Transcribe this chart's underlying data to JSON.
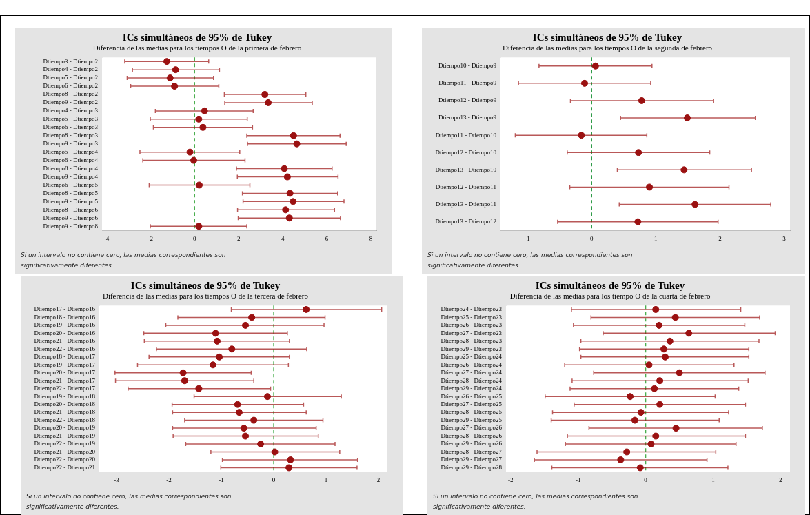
{
  "chart_data": [
    {
      "type": "scatter",
      "orientation": "horizontal",
      "title": "ICs simultáneos de 95% de Tukey",
      "subtitle": "Diferencia de las medias para los tiempos O de la primera de febrero",
      "color": "#9b1111",
      "marker": "circle",
      "grid": false,
      "categories": [
        "Dtiempo3 - Dtiempo2",
        "Dtiempo4 - Dtiempo2",
        "Dtiempo5 - Dtiempo2",
        "Dtiempo6 - Dtiempo2",
        "Dtiempo8 - Dtiempo2",
        "Dtiempo9 - Dtiempo2",
        "Dtiempo4 - Dtiempo3",
        "Dtiempo5 - Dtiempo3",
        "Dtiempo6 - Dtiempo3",
        "Dtiempo8 - Dtiempo3",
        "Dtiempo9 - Dtiempo3",
        "Dtiempo5 - Dtiempo4",
        "Dtiempo6 - Dtiempo4",
        "Dtiempo8 - Dtiempo4",
        "Dtiempo9 - Dtiempo4",
        "Dtiempo6 - Dtiempo5",
        "Dtiempo8 - Dtiempo5",
        "Dtiempo9 - Dtiempo5",
        "Dtiempo8 - Dtiempo6",
        "Dtiempo9 - Dtiempo6",
        "Dtiempo9 - Dtiempo8"
      ],
      "values": [
        -1.26,
        -0.86,
        -1.11,
        -0.91,
        3.19,
        3.34,
        0.45,
        0.19,
        0.38,
        4.49,
        4.64,
        -0.21,
        -0.04,
        4.07,
        4.21,
        0.21,
        4.33,
        4.47,
        4.13,
        4.3,
        0.19
      ],
      "errors": [
        [
          -3.17,
          0.64
        ],
        [
          -2.82,
          1.13
        ],
        [
          -3.06,
          0.86
        ],
        [
          -2.9,
          1.1
        ],
        [
          1.35,
          5.05
        ],
        [
          1.37,
          5.34
        ],
        [
          -1.78,
          2.66
        ],
        [
          -2.01,
          2.39
        ],
        [
          -1.87,
          2.63
        ],
        [
          2.37,
          6.6
        ],
        [
          2.4,
          6.88
        ],
        [
          -2.48,
          2.05
        ],
        [
          -2.35,
          2.29
        ],
        [
          1.9,
          6.24
        ],
        [
          1.94,
          6.51
        ],
        [
          -2.06,
          2.51
        ],
        [
          2.17,
          6.49
        ],
        [
          2.2,
          6.78
        ],
        [
          1.95,
          6.35
        ],
        [
          1.98,
          6.62
        ],
        [
          -2.01,
          2.37
        ]
      ],
      "xlim": [
        -4.2,
        8.25
      ],
      "xticks": [
        -4,
        -2,
        0,
        2,
        4,
        6,
        8
      ],
      "ref_lines": [
        {
          "axis": "x",
          "value": 0,
          "color": "#4caf50",
          "line_style": "dashed"
        }
      ],
      "annotations": [
        "Si un intervalo no contiene cero, las medias correspondientes son significativamente diferentes."
      ]
    },
    {
      "type": "scatter",
      "orientation": "horizontal",
      "title": "ICs simultáneos de 95% de Tukey",
      "subtitle": "Diferencia de las medias para los tiempos O de la segunda de febrero",
      "color": "#9b1111",
      "marker": "circle",
      "grid": false,
      "categories": [
        "Dtiempo10 - Dtiempo9",
        "Dtiempo11 - Dtiempo9",
        "Dtiempo12 - Dtiempo9",
        "Dtiempo13 - Dtiempo9",
        "Dtiempo11 - Dtiempo10",
        "Dtiempo12 - Dtiempo10",
        "Dtiempo13 - Dtiempo10",
        "Dtiempo12 - Dtiempo11",
        "Dtiempo13 - Dtiempo11",
        "Dtiempo13 - Dtiempo12"
      ],
      "values": [
        0.06,
        -0.11,
        0.78,
        1.49,
        -0.16,
        0.73,
        1.44,
        0.9,
        1.61,
        0.72
      ],
      "errors": [
        [
          -0.82,
          0.94
        ],
        [
          -1.14,
          0.92
        ],
        [
          -0.33,
          1.9
        ],
        [
          0.45,
          2.55
        ],
        [
          -1.19,
          0.86
        ],
        [
          -0.38,
          1.84
        ],
        [
          0.4,
          2.49
        ],
        [
          -0.34,
          2.14
        ],
        [
          0.43,
          2.79
        ],
        [
          -0.53,
          1.97
        ]
      ],
      "xlim": [
        -1.42,
        3.09
      ],
      "xticks": [
        -1,
        0,
        1,
        2,
        3
      ],
      "ref_lines": [
        {
          "axis": "x",
          "value": 0,
          "color": "#2e9b47",
          "line_style": "dashed"
        }
      ],
      "annotations": [
        "Si un intervalo no contiene cero, las medias correspondientes son significativamente diferentes."
      ]
    },
    {
      "type": "scatter",
      "orientation": "horizontal",
      "title": "ICs simultáneos de 95% de Tukey",
      "subtitle": "Diferencia de las medias para los tiempos O de la tercera de febrero",
      "color": "#9b1111",
      "marker": "circle",
      "grid": false,
      "categories": [
        "Dtiempo17 - Dtiempo16",
        "Dtiempo18 - Dtiempo16",
        "Dtiempo19 - Dtiempo16",
        "Dtiempo20 - Dtiempo16",
        "Dtiempo21 - Dtiempo16",
        "Dtiempo22 - Dtiempo16",
        "Dtiempo18 - Dtiempo17",
        "Dtiempo19 - Dtiempo17",
        "Dtiempo20 - Dtiempo17",
        "Dtiempo21 - Dtiempo17",
        "Dtiempo22 - Dtiempo17",
        "Dtiempo19 - Dtiempo18",
        "Dtiempo20 - Dtiempo18",
        "Dtiempo21 - Dtiempo18",
        "Dtiempo22 - Dtiempo18",
        "Dtiempo20 - Dtiempo19",
        "Dtiempo21 - Dtiempo19",
        "Dtiempo22 - Dtiempo19",
        "Dtiempo21 - Dtiempo20",
        "Dtiempo22 - Dtiempo20",
        "Dtiempo22 - Dtiempo21"
      ],
      "values": [
        0.62,
        -0.42,
        -0.54,
        -1.11,
        -1.08,
        -0.8,
        -1.04,
        -1.16,
        -1.73,
        -1.7,
        -1.43,
        -0.12,
        -0.69,
        -0.66,
        -0.38,
        -0.57,
        -0.54,
        -0.25,
        0.02,
        0.32,
        0.29
      ],
      "errors": [
        [
          -0.81,
          2.06
        ],
        [
          -1.83,
          0.98
        ],
        [
          -2.06,
          0.96
        ],
        [
          -2.48,
          0.26
        ],
        [
          -2.47,
          0.3
        ],
        [
          -2.24,
          0.63
        ],
        [
          -2.38,
          0.3
        ],
        [
          -2.6,
          0.28
        ],
        [
          -3.03,
          -0.43
        ],
        [
          -3.02,
          -0.38
        ],
        [
          -2.78,
          -0.06
        ],
        [
          -1.52,
          1.29
        ],
        [
          -1.94,
          0.57
        ],
        [
          -1.93,
          0.62
        ],
        [
          -1.7,
          0.94
        ],
        [
          -1.93,
          0.81
        ],
        [
          -1.92,
          0.85
        ],
        [
          -1.68,
          1.17
        ],
        [
          -1.2,
          1.26
        ],
        [
          -0.98,
          1.6
        ],
        [
          -1.01,
          1.59
        ]
      ],
      "xlim": [
        -3.33,
        2.17
      ],
      "xticks": [
        -3,
        -2,
        -1,
        0,
        1,
        2
      ],
      "ref_lines": [
        {
          "axis": "x",
          "value": 0,
          "color": "#4caf50",
          "line_style": "dashed"
        }
      ],
      "annotations": [
        "Si un intervalo no contiene cero, las medias correspondientes son significativamente diferentes."
      ]
    },
    {
      "type": "scatter",
      "orientation": "horizontal",
      "title": "ICs simultáneos de 95% de Tukey",
      "subtitle": "Diferencia de las medias para los tiempo O de la cuarta de febrero",
      "color": "#9b1111",
      "marker": "circle",
      "grid": false,
      "categories": [
        "Dtiempo24 - Dtiempo23",
        "Dtiempo25 - Dtiempo23",
        "Dtiempo26 - Dtiempo23",
        "Dtiempo27 - Dtiempo23",
        "Dtiempo28 - Dtiempo23",
        "Dtiempo29 - Dtiempo23",
        "Dtiempo25 - Dtiempo24",
        "Dtiempo26 - Dtiempo24",
        "Dtiempo27 - Dtiempo24",
        "Dtiempo28 - Dtiempo24",
        "Dtiempo29 - Dtiempo24",
        "Dtiempo26 - Dtiempo25",
        "Dtiempo27 - Dtiempo25",
        "Dtiempo28 - Dtiempo25",
        "Dtiempo29 - Dtiempo25",
        "Dtiempo27 - Dtiempo26",
        "Dtiempo28 - Dtiempo26",
        "Dtiempo29 - Dtiempo26",
        "Dtiempo28 - Dtiempo27",
        "Dtiempo29 - Dtiempo27",
        "Dtiempo29 - Dtiempo28"
      ],
      "values": [
        0.15,
        0.44,
        0.2,
        0.64,
        0.36,
        0.27,
        0.29,
        0.05,
        0.5,
        0.21,
        0.13,
        -0.23,
        0.21,
        -0.07,
        -0.16,
        0.45,
        0.15,
        0.08,
        -0.28,
        -0.37,
        -0.08
      ],
      "errors": [
        [
          -1.1,
          1.41
        ],
        [
          -0.81,
          1.69
        ],
        [
          -1.07,
          1.47
        ],
        [
          -0.63,
          1.92
        ],
        [
          -0.96,
          1.68
        ],
        [
          -0.98,
          1.53
        ],
        [
          -0.96,
          1.53
        ],
        [
          -1.2,
          1.31
        ],
        [
          -0.77,
          1.77
        ],
        [
          -1.09,
          1.52
        ],
        [
          -1.12,
          1.38
        ],
        [
          -1.49,
          1.03
        ],
        [
          -1.06,
          1.48
        ],
        [
          -1.38,
          1.23
        ],
        [
          -1.4,
          1.09
        ],
        [
          -0.84,
          1.73
        ],
        [
          -1.16,
          1.48
        ],
        [
          -1.19,
          1.34
        ],
        [
          -1.61,
          1.04
        ],
        [
          -1.65,
          0.91
        ],
        [
          -1.39,
          1.22
        ]
      ],
      "xlim": [
        -2.07,
        2.14
      ],
      "xticks": [
        -2,
        -1,
        0,
        1,
        2
      ],
      "ref_lines": [
        {
          "axis": "x",
          "value": 0,
          "color": "#4caf50",
          "line_style": "dashed"
        }
      ],
      "annotations": [
        "Si un intervalo no contiene cero, las medias correspondientes son significativamente diferentes."
      ]
    }
  ]
}
